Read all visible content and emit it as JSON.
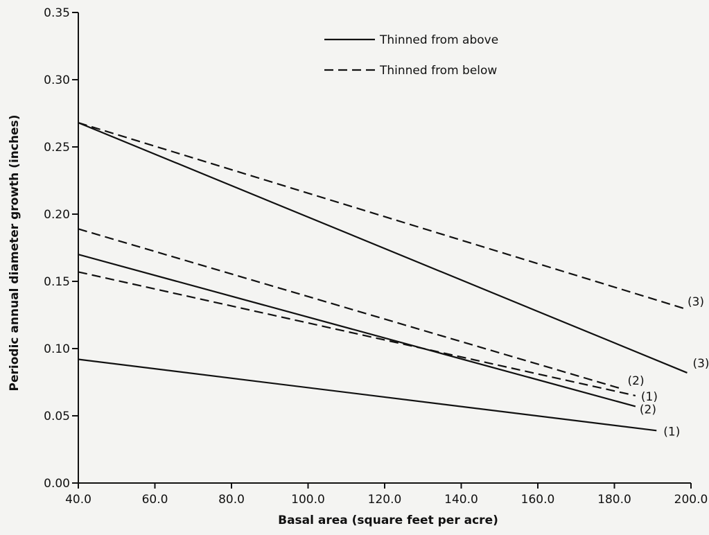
{
  "chart_data": {
    "type": "line",
    "title": "",
    "xlabel": "Basal area (square feet per acre)",
    "ylabel": "Periodic annual diameter growth (inches)",
    "xlim": [
      40,
      200
    ],
    "ylim": [
      0,
      0.35
    ],
    "x_ticks": [
      40,
      60,
      80,
      100,
      120,
      140,
      160,
      180,
      200
    ],
    "x_tick_labels": [
      "40.0",
      "60.0",
      "80.0",
      "100.0",
      "120.0",
      "140.0",
      "160.0",
      "180.0",
      "200.0"
    ],
    "y_ticks": [
      0,
      0.05,
      0.1,
      0.15,
      0.2,
      0.25,
      0.3,
      0.35
    ],
    "y_tick_labels": [
      "0.00",
      "0.05",
      "0.10",
      "0.15",
      "0.20",
      "0.25",
      "0.30",
      "0.35"
    ],
    "grid": false,
    "legend_position": "top-center",
    "legend": [
      {
        "label": "Thinned from above",
        "style": "solid"
      },
      {
        "label": "Thinned from below",
        "style": "dashed"
      }
    ],
    "series": [
      {
        "group": "Thinned from above",
        "style": "solid",
        "label": "(1)",
        "x": [
          40,
          191
        ],
        "y": [
          0.092,
          0.039
        ]
      },
      {
        "group": "Thinned from above",
        "style": "solid",
        "label": "(2)",
        "x": [
          40,
          185.5
        ],
        "y": [
          0.17,
          0.057
        ]
      },
      {
        "group": "Thinned from above",
        "style": "solid",
        "label": "(3)",
        "x": [
          40,
          199
        ],
        "y": [
          0.268,
          0.082
        ]
      },
      {
        "group": "Thinned from below",
        "style": "dashed",
        "label": "(1)",
        "x": [
          40,
          185.5
        ],
        "y": [
          0.157,
          0.065
        ]
      },
      {
        "group": "Thinned from below",
        "style": "dashed",
        "label": "(2)",
        "x": [
          40,
          182
        ],
        "y": [
          0.189,
          0.07
        ]
      },
      {
        "group": "Thinned from below",
        "style": "dashed",
        "label": "(3)",
        "x": [
          40,
          198
        ],
        "y": [
          0.268,
          0.13
        ]
      }
    ],
    "colors": {
      "line": "#111111",
      "background": "#f4f4f2"
    }
  }
}
